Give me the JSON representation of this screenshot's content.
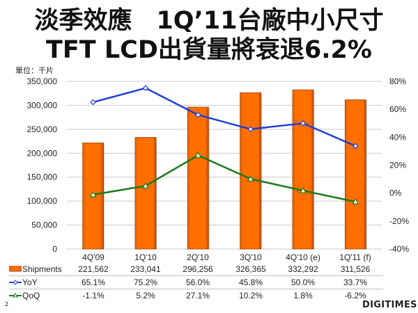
{
  "title_line1": "淡季效應　1Q’11台廠中小尺寸",
  "title_line2": "TFT LCD出貨量將衰退6.2%",
  "unit_label": "單位：千片",
  "page_number": "2",
  "logo_text": "DIGITIMES",
  "colors": {
    "bar": "#ff6f00",
    "bar_edge": "#a04000",
    "yoy": "#1f3fd6",
    "qoq": "#1a7a1a",
    "grid": "#c8c8c8"
  },
  "chart_data": {
    "type": "bar",
    "title": "淡季效應　1Q’11台廠中小尺寸 TFT LCD出貨量將衰退6.2%",
    "categories": [
      "4Q'09",
      "1Q'10",
      "2Q'10",
      "3Q'10",
      "4Q'10 (e)",
      "1Q'11 (f)"
    ],
    "series": [
      {
        "name": "Shipments",
        "type": "bar",
        "axis": "left",
        "values": [
          221562,
          233041,
          296256,
          326365,
          332292,
          311526
        ],
        "labels": [
          "221,562",
          "233,041",
          "296,256",
          "326,365",
          "332,292",
          "311,526"
        ]
      },
      {
        "name": "YoY",
        "type": "line",
        "axis": "right",
        "values": [
          65.1,
          75.2,
          56.0,
          45.8,
          50.0,
          33.7
        ],
        "labels": [
          "65.1%",
          "75.2%",
          "56.0%",
          "45.8%",
          "50.0%",
          "33.7%"
        ]
      },
      {
        "name": "QoQ",
        "type": "line",
        "axis": "right",
        "values": [
          -1.1,
          5.2,
          27.1,
          10.2,
          1.8,
          -6.2
        ],
        "labels": [
          "-1.1%",
          "5.2%",
          "27.1%",
          "10.2%",
          "1.8%",
          "-6.2%"
        ]
      }
    ],
    "ylim_left": [
      0,
      350000
    ],
    "ylim_right": [
      -40,
      80
    ],
    "yticks_left": [
      "0",
      "50,000",
      "100,000",
      "150,000",
      "200,000",
      "250,000",
      "300,000",
      "350,000"
    ],
    "yticks_right": [
      "-40%",
      "-20%",
      "0%",
      "20%",
      "40%",
      "60%",
      "80%"
    ],
    "ylabel": "單位：千片",
    "grid": true,
    "legend": "data-table"
  }
}
